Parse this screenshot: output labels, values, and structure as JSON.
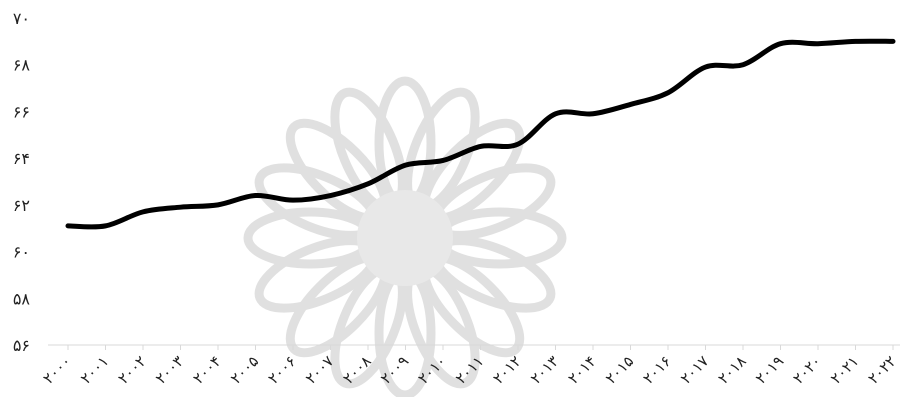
{
  "chart_data": {
    "type": "line",
    "title": "",
    "xlabel": "",
    "ylabel": "",
    "ylim": [
      56,
      70
    ],
    "yticks": [
      56,
      58,
      60,
      62,
      64,
      66,
      68,
      70
    ],
    "ytick_labels": [
      "۵۶",
      "۵۸",
      "۶۰",
      "۶۲",
      "۶۴",
      "۶۶",
      "۶۸",
      "۷۰"
    ],
    "categories": [
      "۲۰۰۰",
      "۲۰۰۱",
      "۲۰۰۲",
      "۲۰۰۳",
      "۲۰۰۴",
      "۲۰۰۵",
      "۲۰۰۶",
      "۲۰۰۷",
      "۲۰۰۸",
      "۲۰۰۹",
      "۲۰۱۰",
      "۲۰۱۱",
      "۲۰۱۲",
      "۲۰۱۳",
      "۲۰۱۴",
      "۲۰۱۵",
      "۲۰۱۶",
      "۲۰۱۷",
      "۲۰۱۸",
      "۲۰۱۹",
      "۲۰۲۰",
      "۲۰۲۱",
      "۲۰۲۲"
    ],
    "series": [
      {
        "values": [
          61.1,
          61.1,
          61.7,
          61.9,
          62.0,
          62.4,
          62.2,
          62.4,
          62.9,
          63.7,
          63.9,
          64.5,
          64.6,
          65.9,
          65.9,
          66.3,
          66.8,
          67.9,
          68.0,
          68.9,
          68.9,
          69.0,
          69.0
        ],
        "color": "#000000"
      }
    ],
    "grid": false,
    "legend": "none",
    "axis_color": "#d9d9d9",
    "watermark": "arabesque-star-rosette"
  }
}
